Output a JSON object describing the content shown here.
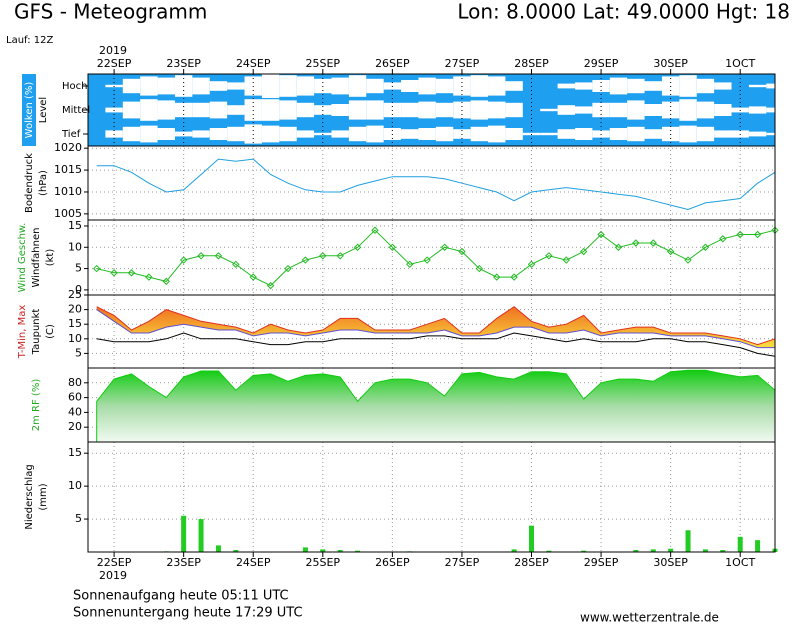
{
  "header": {
    "title": "GFS - Meteogramm",
    "location": "Lon: 8.0000  Lat: 49.0000  Hgt: 18",
    "run": "Lauf: 12Z",
    "year": "2019"
  },
  "time": {
    "xlim": [
      -9,
      228
    ],
    "xticks": [
      {
        "value": 0,
        "label": "22SEP"
      },
      {
        "value": 24,
        "label": "23SEP"
      },
      {
        "value": 48,
        "label": "24SEP"
      },
      {
        "value": 72,
        "label": "25SEP"
      },
      {
        "value": 96,
        "label": "26SEP"
      },
      {
        "value": 120,
        "label": "27SEP"
      },
      {
        "value": 144,
        "label": "28SEP"
      },
      {
        "value": 168,
        "label": "29SEP"
      },
      {
        "value": 192,
        "label": "30SEP"
      },
      {
        "value": 216,
        "label": "1OCT"
      }
    ],
    "x": [
      -6,
      0,
      6,
      12,
      18,
      24,
      30,
      36,
      42,
      48,
      54,
      60,
      66,
      72,
      78,
      84,
      90,
      96,
      102,
      108,
      114,
      120,
      126,
      132,
      138,
      144,
      150,
      156,
      162,
      168,
      174,
      180,
      186,
      192,
      198,
      204,
      210,
      216,
      222,
      228
    ]
  },
  "chart_data": [
    {
      "type": "cloud",
      "ylabels": [
        "Wolken (%)",
        "Level"
      ],
      "ylabel_colors": [
        "#ffffff",
        "#000000"
      ],
      "background": "#1e9fef",
      "series": [
        {
          "name": "Hoch",
          "color": "#ffffff",
          "values": [
            0,
            10,
            60,
            80,
            70,
            90,
            70,
            40,
            30,
            80,
            100,
            90,
            80,
            60,
            70,
            90,
            60,
            30,
            50,
            70,
            60,
            80,
            90,
            80,
            40,
            0,
            0,
            20,
            30,
            50,
            70,
            60,
            40,
            80,
            90,
            60,
            30,
            0,
            10,
            20
          ]
        },
        {
          "name": "Mittel",
          "color": "#ffffff",
          "values": [
            0,
            20,
            70,
            90,
            80,
            60,
            60,
            70,
            40,
            90,
            90,
            80,
            60,
            40,
            50,
            80,
            80,
            60,
            60,
            70,
            60,
            70,
            80,
            70,
            60,
            0,
            10,
            40,
            30,
            60,
            60,
            80,
            50,
            70,
            90,
            70,
            50,
            20,
            30,
            20
          ]
        },
        {
          "name": "Tief",
          "color": "#ffffff",
          "values": [
            0,
            30,
            60,
            70,
            50,
            20,
            30,
            50,
            60,
            80,
            70,
            60,
            30,
            10,
            30,
            60,
            70,
            50,
            40,
            50,
            60,
            40,
            60,
            70,
            50,
            10,
            10,
            40,
            50,
            30,
            50,
            60,
            40,
            60,
            70,
            60,
            30,
            30,
            20,
            10
          ]
        }
      ]
    },
    {
      "type": "line",
      "ylabels": [
        "Bodendruck",
        "(hPa)"
      ],
      "ylabel_colors": [
        "#000000",
        "#000000"
      ],
      "ylim": [
        1003.6,
        1020.5
      ],
      "yticks": [
        1005,
        1010,
        1015,
        1020
      ],
      "series": [
        {
          "color": "#1f9fdf",
          "values": [
            1016,
            1016,
            1014.5,
            1012,
            1010,
            1010.5,
            1014,
            1017.5,
            1017,
            1017.5,
            1014,
            1012,
            1010.5,
            1010,
            1010,
            1011.5,
            1012.5,
            1013.5,
            1013.5,
            1013.5,
            1013,
            1012,
            1011,
            1010,
            1008,
            1010,
            1010.5,
            1011,
            1010.5,
            1010,
            1009.5,
            1009,
            1008,
            1007,
            1006,
            1007.5,
            1008,
            1008.5,
            1012,
            1014.5
          ]
        }
      ]
    },
    {
      "type": "line",
      "markers": true,
      "ylabels": [
        "Wind Geschw.",
        "Windfahnen",
        "(kt)"
      ],
      "ylabel_colors": [
        "#22aa22",
        "#000000",
        "#000000"
      ],
      "ylim": [
        -1.2,
        16.4
      ],
      "yticks": [
        0,
        5,
        10,
        15
      ],
      "series": [
        {
          "color": "#22bb22",
          "values": [
            5,
            4,
            4,
            3,
            2,
            7,
            8,
            8,
            6,
            3,
            1,
            5,
            7,
            8,
            8,
            10,
            14,
            10,
            6,
            7,
            10,
            9,
            5,
            3,
            3,
            6,
            8,
            7,
            9,
            13,
            10,
            11,
            11,
            9,
            7,
            10,
            12,
            13,
            13,
            14
          ]
        }
      ]
    },
    {
      "type": "band",
      "ylabels": [
        "T-Min, Max",
        "Taupunkt",
        "(C)"
      ],
      "ylabel_colors": [
        "#cc2222",
        "#000000",
        "#000000"
      ],
      "ylim": [
        0,
        25
      ],
      "yticks": [
        5,
        10,
        15,
        20,
        25
      ],
      "band_color": "#f3a530",
      "series": [
        {
          "color": "#e03020",
          "values": [
            21,
            18,
            13,
            16,
            20,
            18,
            16,
            15,
            14,
            12,
            15,
            13,
            12,
            13,
            17,
            17,
            13,
            13,
            13,
            15,
            17,
            12,
            12,
            17,
            21,
            16,
            14,
            15,
            18,
            12,
            13,
            14,
            14,
            12,
            12,
            12,
            11,
            10,
            8,
            10
          ]
        },
        {
          "color": "#6050d0",
          "values": [
            20,
            16,
            12,
            12,
            14,
            15,
            14,
            13,
            13,
            11,
            12,
            12,
            11,
            12,
            13,
            13,
            12,
            12,
            12,
            12,
            13,
            11,
            11,
            12,
            14,
            14,
            12,
            12,
            13,
            11,
            12,
            12,
            12,
            11,
            11,
            11,
            10,
            9,
            7,
            7
          ]
        },
        {
          "color": "#000000",
          "values": [
            10,
            9,
            9,
            9,
            10,
            12,
            10,
            10,
            10,
            9,
            8,
            8,
            9,
            9,
            10,
            10,
            10,
            10,
            10,
            11,
            11,
            10,
            10,
            10,
            12,
            11,
            10,
            9,
            10,
            9,
            9,
            9,
            10,
            10,
            9,
            9,
            8,
            7,
            5,
            4
          ]
        }
      ]
    },
    {
      "type": "area",
      "ylabels": [
        "2m RF (%)"
      ],
      "ylabel_colors": [
        "#22aa22"
      ],
      "ylim": [
        0,
        100
      ],
      "yticks": [
        20,
        40,
        60,
        80
      ],
      "series": [
        {
          "color": "#11cc11",
          "values": [
            55,
            85,
            92,
            75,
            60,
            88,
            96,
            96,
            70,
            90,
            92,
            82,
            90,
            92,
            88,
            55,
            80,
            85,
            85,
            80,
            62,
            92,
            94,
            88,
            85,
            95,
            95,
            92,
            58,
            80,
            85,
            85,
            82,
            95,
            97,
            97,
            92,
            88,
            90,
            70
          ]
        }
      ]
    },
    {
      "type": "bar",
      "ylabels": [
        "Niederschlag",
        "(mm)"
      ],
      "ylabel_colors": [
        "#000000",
        "#000000"
      ],
      "ylim": [
        0,
        16.7
      ],
      "yticks": [
        5,
        10,
        15
      ],
      "series": [
        {
          "color": "#22cc22",
          "values": [
            0,
            0,
            0,
            0,
            0.1,
            5.5,
            5,
            1,
            0.3,
            0,
            0,
            0,
            0.7,
            0.4,
            0.3,
            0.2,
            0,
            0,
            0.1,
            0,
            0,
            0,
            0,
            0,
            0.4,
            4,
            0.2,
            0,
            0.2,
            0,
            0,
            0.3,
            0.4,
            0.5,
            3.3,
            0.4,
            0.3,
            2.3,
            1.8,
            0.5
          ]
        }
      ]
    }
  ],
  "footer": {
    "sunrise": "Sonnenaufgang heute 05:11 UTC",
    "sunset": "Sonnenuntergang heute 17:29 UTC",
    "site": "www.wetterzentrale.de"
  }
}
